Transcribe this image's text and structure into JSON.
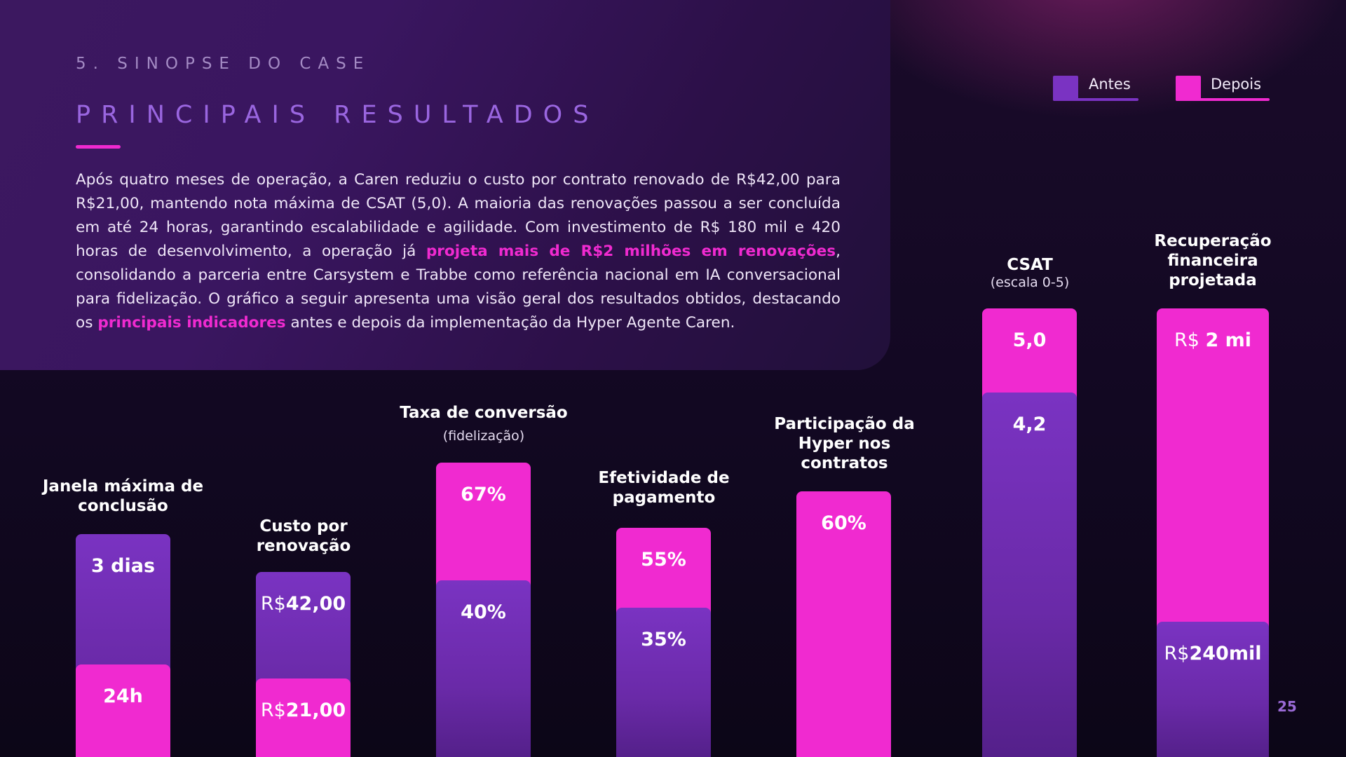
{
  "header": {
    "kicker": "5. SINOPSE DO CASE",
    "title": "PRINCIPAIS RESULTADOS"
  },
  "paragraph": {
    "p1": "Após quatro meses de operação, a Caren reduziu o custo por contrato renovado de R$42,00 para R$21,00, mantendo nota máxima de CSAT (5,0). A maioria das renovações passou a ser concluída em até 24 horas, garantindo escalabilidade e agilidade. Com investimento de R$ 180 mil e 420 horas de desenvolvimento, a operação já ",
    "hl1": "projeta mais de R$2 milhões em renovações",
    "p2": ", consolidando a parceria entre Carsystem e Trabbe como referência nacional em IA conversacional para fidelização. O gráfico a seguir apresenta uma visão geral dos resultados obtidos, destacando os ",
    "hl2": "principais indicadores",
    "p3": " antes e depois da implementação da Hyper Agente Caren."
  },
  "legend": {
    "before": "Antes",
    "after": "Depois"
  },
  "colors": {
    "before": "#7a33c2",
    "after": "#f02ad0",
    "title": "#9a66e0"
  },
  "chart_data": {
    "type": "bar",
    "categories": [
      "Janela máxima de conclusão",
      "Custo por renovação",
      "Taxa de conversão",
      "Efetividade de pagamento",
      "Participação da Hyper nos contratos",
      "CSAT",
      "Recuperação financeira projetada"
    ],
    "subtitles": [
      "",
      "",
      "(fidelização)",
      "",
      "",
      "(escala 0-5)",
      ""
    ],
    "series": [
      {
        "name": "Antes",
        "values": [
          3,
          42.0,
          40,
          35,
          null,
          4.2,
          240000
        ],
        "labels": [
          {
            "num": "3 dias"
          },
          {
            "pre": "R$",
            "num": "42,00"
          },
          {
            "num": "40%"
          },
          {
            "num": "35%"
          },
          null,
          {
            "num": "4,2"
          },
          {
            "pre": "R$",
            "num": "240mil"
          }
        ]
      },
      {
        "name": "Depois",
        "values": [
          1,
          21.0,
          67,
          55,
          60,
          5.0,
          2000000
        ],
        "labels": [
          {
            "num": "24h"
          },
          {
            "pre": "R$",
            "num": "21,00"
          },
          {
            "num": "67%"
          },
          {
            "num": "55%"
          },
          {
            "num": "60%"
          },
          {
            "num": "5,0"
          },
          {
            "pre": "R$ ",
            "num": "2 mi"
          }
        ]
      }
    ]
  },
  "page": {
    "number": "25"
  }
}
